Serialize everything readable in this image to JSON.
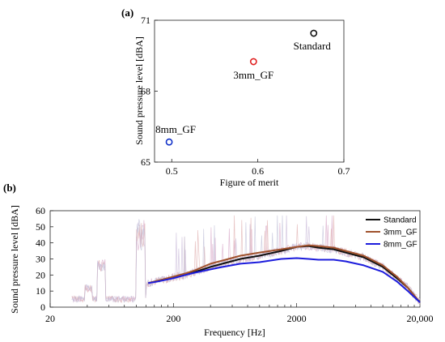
{
  "chart_data": [
    {
      "panel_label": "(a)",
      "type": "scatter",
      "xlabel": "Figure of merit",
      "ylabel": "Sound pressure level [dBA]",
      "xlim": [
        0.48,
        0.7
      ],
      "ylim": [
        65,
        71
      ],
      "xticks": [
        "0.5",
        "0.6",
        "0.7"
      ],
      "yticks": [
        "65",
        "68",
        "71"
      ],
      "points": [
        {
          "label": "Standard",
          "x": 0.665,
          "y": 70.45,
          "color": "#111111"
        },
        {
          "label": "3mm_GF",
          "x": 0.595,
          "y": 69.25,
          "color": "#e02020"
        },
        {
          "label": "8mm_GF",
          "x": 0.497,
          "y": 65.85,
          "color": "#1030c8"
        }
      ]
    },
    {
      "panel_label": "(b)",
      "type": "line",
      "xscale": "log",
      "xlabel": "Frequency [Hz]",
      "ylabel": "Sound pressure level [dBA]",
      "xlim": [
        20,
        20000
      ],
      "ylim": [
        0,
        60
      ],
      "xticks": [
        "20",
        "200",
        "2000",
        "20,000"
      ],
      "yticks": [
        "0",
        "10",
        "20",
        "30",
        "40",
        "50",
        "60"
      ],
      "legend_position": "top-right",
      "series": [
        {
          "name": "Standard",
          "color": "#111111",
          "x": [
            125,
            150,
            200,
            250,
            300,
            400,
            500,
            700,
            1000,
            1500,
            2000,
            2500,
            3000,
            4000,
            5000,
            7000,
            10000,
            13000,
            16000,
            20000
          ],
          "y": [
            15,
            16.5,
            18.5,
            20,
            22,
            25,
            27,
            30,
            32,
            35,
            37.5,
            38,
            37,
            36,
            34,
            31,
            25,
            18,
            12,
            3
          ]
        },
        {
          "name": "3mm_GF",
          "color": "#a0522d",
          "x": [
            125,
            150,
            200,
            250,
            300,
            400,
            500,
            700,
            1000,
            1500,
            2000,
            2500,
            3000,
            4000,
            5000,
            7000,
            10000,
            13000,
            16000,
            20000
          ],
          "y": [
            15,
            16.5,
            19,
            21,
            23,
            27,
            29,
            32,
            34,
            36,
            37.5,
            38.5,
            38,
            37,
            35,
            32,
            26,
            19,
            12,
            3
          ]
        },
        {
          "name": "8mm_GF",
          "color": "#1c1cdc",
          "x": [
            125,
            150,
            200,
            250,
            300,
            400,
            500,
            700,
            1000,
            1500,
            2000,
            2500,
            3000,
            4000,
            5000,
            7000,
            10000,
            13000,
            16000,
            20000
          ],
          "y": [
            15,
            16,
            18,
            20,
            21.5,
            23.5,
            25,
            27,
            28,
            30,
            30.5,
            30,
            29.5,
            29.5,
            28.5,
            26,
            22,
            16,
            10,
            3
          ]
        }
      ]
    }
  ]
}
